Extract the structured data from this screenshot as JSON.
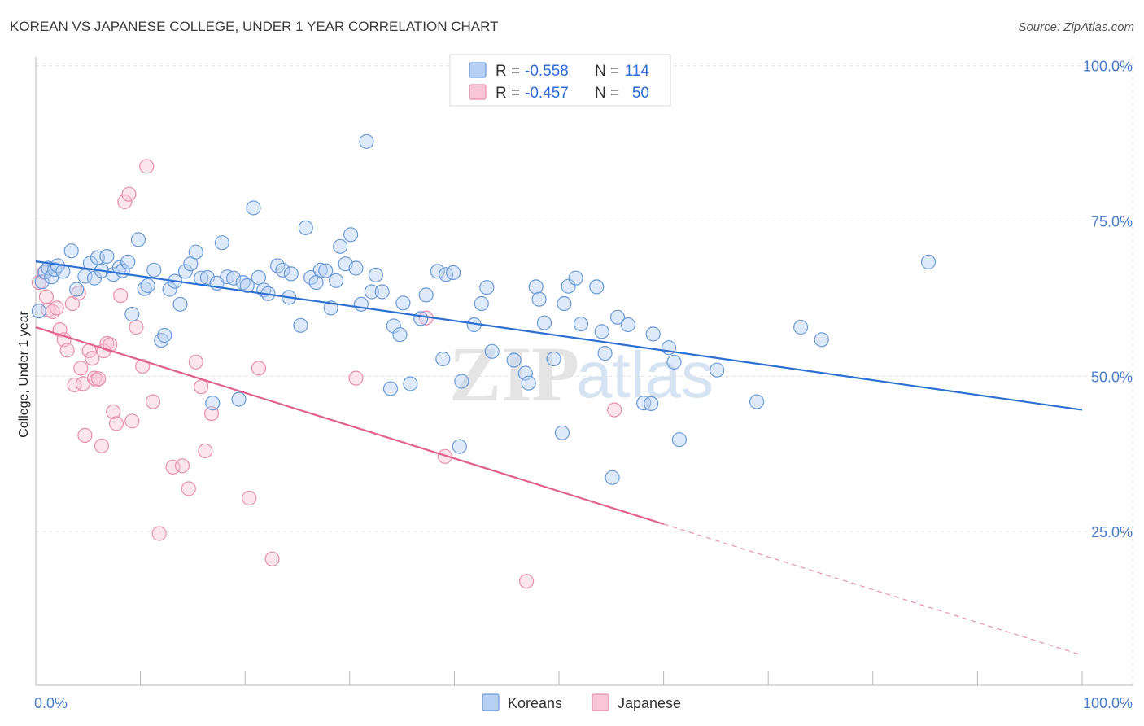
{
  "header": {
    "title": "KOREAN VS JAPANESE COLLEGE, UNDER 1 YEAR CORRELATION CHART",
    "source": "Source: ZipAtlas.com"
  },
  "watermark": {
    "part1": "ZIP",
    "part2": "atlas"
  },
  "legend_stats": {
    "koreans": {
      "r_label": "R =",
      "r_value": "-0.558",
      "n_label": "N =",
      "n_value": "114"
    },
    "japanese": {
      "r_label": "R =",
      "r_value": "-0.457",
      "n_label": "N =",
      "n_value": "50"
    }
  },
  "bottom_legend": {
    "koreans": "Koreans",
    "japanese": "Japanese"
  },
  "colors": {
    "korean_fill": "#b5d0f2",
    "korean_stroke": "#6c9ad8",
    "korean_line": "#2b6fd1",
    "japanese_fill": "#f8c6d6",
    "japanese_stroke": "#e590ac",
    "japanese_line": "#e0608e",
    "grid": "#e3e3e3",
    "tick": "#4a7cc8"
  },
  "chart_data": {
    "type": "scatter",
    "title": "KOREAN VS JAPANESE COLLEGE, UNDER 1 YEAR CORRELATION CHART",
    "xlabel": "",
    "ylabel": "College, Under 1 year",
    "xlim": [
      0,
      100
    ],
    "ylim": [
      0,
      102
    ],
    "x_tick_labels": [
      "0.0%",
      "100.0%"
    ],
    "y_ticks": [
      25,
      50,
      75,
      100
    ],
    "y_tick_labels": [
      "25.0%",
      "50.0%",
      "75.0%",
      "100.0%"
    ],
    "grid": true,
    "legend_position": "top-center",
    "series": [
      {
        "name": "Koreans",
        "r": -0.558,
        "n": 114,
        "trend": {
          "x": [
            0,
            100
          ],
          "y": [
            68.5,
            44.6
          ],
          "dashed_from": null
        },
        "points": [
          [
            0.3,
            60.5
          ],
          [
            0.6,
            65.2
          ],
          [
            0.9,
            66.8
          ],
          [
            1.2,
            67.4
          ],
          [
            1.5,
            66.0
          ],
          [
            1.8,
            67.2
          ],
          [
            2.1,
            67.8
          ],
          [
            2.6,
            66.9
          ],
          [
            3.4,
            70.2
          ],
          [
            3.9,
            64.0
          ],
          [
            4.7,
            66.1
          ],
          [
            5.2,
            68.2
          ],
          [
            5.6,
            65.8
          ],
          [
            5.9,
            69.1
          ],
          [
            6.3,
            67.0
          ],
          [
            6.8,
            69.3
          ],
          [
            7.4,
            66.4
          ],
          [
            8.0,
            67.5
          ],
          [
            8.3,
            67.0
          ],
          [
            8.8,
            68.4
          ],
          [
            9.2,
            60.0
          ],
          [
            9.8,
            72.0
          ],
          [
            10.4,
            64.1
          ],
          [
            10.7,
            64.6
          ],
          [
            11.3,
            67.1
          ],
          [
            12.0,
            55.8
          ],
          [
            12.3,
            56.6
          ],
          [
            12.8,
            64.0
          ],
          [
            13.3,
            65.3
          ],
          [
            13.8,
            61.6
          ],
          [
            14.3,
            66.9
          ],
          [
            14.8,
            68.1
          ],
          [
            15.3,
            70.0
          ],
          [
            15.8,
            65.8
          ],
          [
            16.4,
            65.9
          ],
          [
            16.9,
            45.7
          ],
          [
            17.3,
            65.0
          ],
          [
            17.8,
            71.5
          ],
          [
            18.3,
            66.0
          ],
          [
            18.9,
            65.8
          ],
          [
            19.4,
            46.3
          ],
          [
            19.8,
            65.1
          ],
          [
            20.2,
            64.6
          ],
          [
            20.8,
            77.1
          ],
          [
            21.3,
            65.9
          ],
          [
            21.8,
            63.9
          ],
          [
            22.2,
            63.3
          ],
          [
            23.1,
            67.8
          ],
          [
            23.6,
            67.1
          ],
          [
            24.2,
            62.7
          ],
          [
            24.4,
            66.5
          ],
          [
            25.3,
            58.2
          ],
          [
            25.8,
            73.9
          ],
          [
            26.3,
            65.9
          ],
          [
            26.8,
            65.1
          ],
          [
            27.2,
            67.1
          ],
          [
            27.7,
            67.0
          ],
          [
            28.2,
            61.0
          ],
          [
            28.7,
            65.4
          ],
          [
            29.1,
            70.9
          ],
          [
            29.6,
            68.1
          ],
          [
            30.1,
            72.8
          ],
          [
            30.6,
            67.4
          ],
          [
            31.1,
            61.6
          ],
          [
            31.6,
            87.8
          ],
          [
            32.1,
            63.6
          ],
          [
            32.5,
            66.3
          ],
          [
            33.1,
            63.6
          ],
          [
            33.9,
            48.0
          ],
          [
            34.2,
            58.1
          ],
          [
            34.8,
            56.7
          ],
          [
            35.1,
            61.8
          ],
          [
            35.8,
            48.8
          ],
          [
            36.8,
            59.3
          ],
          [
            37.3,
            63.1
          ],
          [
            38.4,
            66.9
          ],
          [
            38.9,
            52.8
          ],
          [
            39.2,
            66.4
          ],
          [
            39.9,
            66.7
          ],
          [
            40.7,
            49.2
          ],
          [
            40.5,
            38.7
          ],
          [
            41.9,
            58.3
          ],
          [
            42.6,
            61.7
          ],
          [
            43.1,
            64.3
          ],
          [
            43.6,
            54.0
          ],
          [
            45.7,
            52.6
          ],
          [
            46.8,
            50.5
          ],
          [
            47.1,
            48.9
          ],
          [
            47.8,
            64.4
          ],
          [
            48.1,
            62.4
          ],
          [
            48.6,
            58.6
          ],
          [
            49.5,
            52.8
          ],
          [
            50.3,
            40.9
          ],
          [
            50.5,
            61.7
          ],
          [
            50.9,
            64.5
          ],
          [
            51.6,
            65.8
          ],
          [
            52.1,
            58.4
          ],
          [
            53.6,
            64.4
          ],
          [
            54.1,
            57.2
          ],
          [
            54.4,
            53.7
          ],
          [
            55.1,
            33.7
          ],
          [
            55.6,
            59.5
          ],
          [
            56.6,
            58.3
          ],
          [
            58.1,
            45.7
          ],
          [
            58.8,
            45.6
          ],
          [
            59.0,
            56.8
          ],
          [
            60.5,
            54.6
          ],
          [
            61.0,
            52.3
          ],
          [
            61.5,
            39.8
          ],
          [
            65.1,
            51.0
          ],
          [
            68.9,
            45.9
          ],
          [
            73.1,
            57.9
          ],
          [
            75.1,
            55.9
          ],
          [
            85.3,
            68.4
          ]
        ]
      },
      {
        "name": "Japanese",
        "r": -0.457,
        "n": 50,
        "trend": {
          "x": [
            0,
            100
          ],
          "y": [
            57.9,
            5.1
          ],
          "dashed_from": 60
        },
        "points": [
          [
            0.3,
            65.1
          ],
          [
            0.8,
            66.7
          ],
          [
            1.0,
            62.8
          ],
          [
            1.2,
            60.7
          ],
          [
            1.6,
            60.4
          ],
          [
            2.0,
            61.0
          ],
          [
            2.3,
            57.5
          ],
          [
            2.7,
            55.9
          ],
          [
            3.0,
            54.2
          ],
          [
            3.5,
            61.7
          ],
          [
            3.7,
            48.6
          ],
          [
            4.1,
            63.4
          ],
          [
            4.3,
            51.3
          ],
          [
            4.5,
            48.8
          ],
          [
            4.7,
            40.5
          ],
          [
            5.1,
            54.1
          ],
          [
            5.4,
            52.9
          ],
          [
            5.6,
            49.7
          ],
          [
            5.8,
            49.4
          ],
          [
            6.0,
            49.6
          ],
          [
            6.3,
            38.8
          ],
          [
            6.5,
            54.1
          ],
          [
            6.8,
            55.3
          ],
          [
            7.1,
            55.1
          ],
          [
            7.4,
            44.3
          ],
          [
            7.7,
            42.4
          ],
          [
            8.1,
            63.0
          ],
          [
            8.5,
            78.1
          ],
          [
            8.9,
            79.3
          ],
          [
            9.2,
            42.8
          ],
          [
            9.6,
            57.9
          ],
          [
            10.2,
            51.6
          ],
          [
            10.6,
            83.8
          ],
          [
            11.2,
            45.9
          ],
          [
            11.8,
            24.7
          ],
          [
            13.1,
            35.4
          ],
          [
            14.0,
            35.6
          ],
          [
            14.6,
            31.9
          ],
          [
            15.3,
            52.3
          ],
          [
            15.8,
            48.3
          ],
          [
            16.2,
            38.0
          ],
          [
            16.8,
            44.0
          ],
          [
            20.4,
            30.4
          ],
          [
            21.3,
            51.3
          ],
          [
            22.6,
            20.6
          ],
          [
            30.6,
            49.7
          ],
          [
            37.3,
            59.4
          ],
          [
            39.1,
            37.1
          ],
          [
            46.9,
            17.0
          ],
          [
            55.3,
            44.6
          ]
        ]
      }
    ]
  }
}
